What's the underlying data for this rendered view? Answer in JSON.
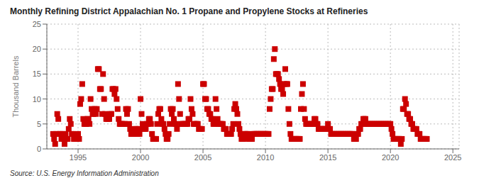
{
  "chart_data": {
    "type": "scatter",
    "title": "Monthly Refining District Appalachian No. 1 Propane and Propylene Stocks at Refineries",
    "ylabel": "Thousand Barrels",
    "annotations": [
      "Source: U.S. Energy Information Administration"
    ],
    "color": "#cc0000",
    "marker": "square",
    "grid": true,
    "xlim": [
      1992.5,
      2025.5
    ],
    "ylim": [
      0,
      25
    ],
    "xticks": [
      1995,
      2000,
      2005,
      2010,
      2015,
      2020,
      2025
    ],
    "yticks": [
      0,
      5,
      10,
      15,
      20,
      25
    ],
    "x": [
      1993.0,
      1993.083,
      1993.167,
      1993.25,
      1993.333,
      1993.417,
      1993.5,
      1993.583,
      1993.667,
      1993.75,
      1993.833,
      1993.917,
      1994.0,
      1994.083,
      1994.167,
      1994.25,
      1994.333,
      1994.417,
      1994.5,
      1994.583,
      1994.667,
      1994.75,
      1994.833,
      1994.917,
      1995.0,
      1995.083,
      1995.167,
      1995.25,
      1995.333,
      1995.417,
      1995.5,
      1995.583,
      1995.667,
      1995.75,
      1995.833,
      1995.917,
      1996.0,
      1996.083,
      1996.167,
      1996.25,
      1996.333,
      1996.417,
      1996.5,
      1996.583,
      1996.667,
      1996.75,
      1996.833,
      1996.917,
      1997.0,
      1997.083,
      1997.167,
      1997.25,
      1997.333,
      1997.417,
      1997.5,
      1997.583,
      1997.667,
      1997.75,
      1997.833,
      1997.917,
      1998.0,
      1998.083,
      1998.167,
      1998.25,
      1998.333,
      1998.417,
      1998.5,
      1998.583,
      1998.667,
      1998.75,
      1998.833,
      1998.917,
      1999.0,
      1999.083,
      1999.167,
      1999.25,
      1999.333,
      1999.417,
      1999.5,
      1999.583,
      1999.667,
      1999.75,
      1999.833,
      1999.917,
      2000.0,
      2000.083,
      2000.167,
      2000.25,
      2000.333,
      2000.417,
      2000.5,
      2000.583,
      2000.667,
      2000.75,
      2000.833,
      2000.917,
      2001.0,
      2001.083,
      2001.167,
      2001.25,
      2001.333,
      2001.417,
      2001.5,
      2001.583,
      2001.667,
      2001.75,
      2001.833,
      2001.917,
      2002.0,
      2002.083,
      2002.167,
      2002.25,
      2002.333,
      2002.417,
      2002.5,
      2002.583,
      2002.667,
      2002.75,
      2002.833,
      2002.917,
      2003.0,
      2003.083,
      2003.167,
      2003.25,
      2003.333,
      2003.417,
      2003.5,
      2003.583,
      2003.667,
      2003.75,
      2003.833,
      2003.917,
      2004.0,
      2004.083,
      2004.167,
      2004.25,
      2004.333,
      2004.417,
      2004.5,
      2004.583,
      2004.667,
      2004.75,
      2004.833,
      2004.917,
      2005.0,
      2005.083,
      2005.167,
      2005.25,
      2005.333,
      2005.417,
      2005.5,
      2005.583,
      2005.667,
      2005.75,
      2005.833,
      2005.917,
      2006.0,
      2006.083,
      2006.167,
      2006.25,
      2006.333,
      2006.417,
      2006.5,
      2006.583,
      2006.667,
      2006.75,
      2006.833,
      2006.917,
      2007.0,
      2007.083,
      2007.167,
      2007.25,
      2007.333,
      2007.417,
      2007.5,
      2007.583,
      2007.667,
      2007.75,
      2007.833,
      2007.917,
      2008.0,
      2008.083,
      2008.167,
      2008.25,
      2008.333,
      2008.417,
      2008.5,
      2008.583,
      2008.667,
      2008.75,
      2008.833,
      2008.917,
      2009.0,
      2009.083,
      2009.167,
      2009.25,
      2009.333,
      2009.417,
      2009.5,
      2009.583,
      2009.667,
      2009.75,
      2009.833,
      2009.917,
      2010.0,
      2010.083,
      2010.167,
      2010.25,
      2010.333,
      2010.417,
      2010.5,
      2010.583,
      2010.667,
      2010.75,
      2010.833,
      2010.917,
      2011.0,
      2011.083,
      2011.167,
      2011.25,
      2011.333,
      2011.417,
      2011.5,
      2011.583,
      2011.667,
      2011.75,
      2011.833,
      2011.917,
      2012.0,
      2012.083,
      2012.167,
      2012.25,
      2012.333,
      2012.417,
      2012.5,
      2012.583,
      2012.667,
      2012.75,
      2012.833,
      2012.917,
      2013.0,
      2013.083,
      2013.167,
      2013.25,
      2013.333,
      2013.417,
      2013.5,
      2013.583,
      2013.667,
      2013.75,
      2013.833,
      2013.917,
      2014.0,
      2014.083,
      2014.167,
      2014.25,
      2014.333,
      2014.417,
      2014.5,
      2014.583,
      2014.667,
      2014.75,
      2014.833,
      2014.917,
      2015.0,
      2015.083,
      2015.167,
      2015.25,
      2015.333,
      2015.417,
      2015.5,
      2015.583,
      2015.667,
      2015.75,
      2015.833,
      2015.917,
      2016.0,
      2016.083,
      2016.167,
      2016.25,
      2016.333,
      2016.417,
      2016.5,
      2016.583,
      2016.667,
      2016.75,
      2016.833,
      2016.917,
      2017.0,
      2017.083,
      2017.167,
      2017.25,
      2017.333,
      2017.417,
      2017.5,
      2017.583,
      2017.667,
      2017.75,
      2017.833,
      2017.917,
      2018.0,
      2018.083,
      2018.167,
      2018.25,
      2018.333,
      2018.417,
      2018.5,
      2018.583,
      2018.667,
      2018.75,
      2018.833,
      2018.917,
      2019.0,
      2019.083,
      2019.167,
      2019.25,
      2019.333,
      2019.417,
      2019.5,
      2019.583,
      2019.667,
      2019.75,
      2019.833,
      2019.917,
      2020.0,
      2020.083,
      2020.167,
      2020.25,
      2020.333,
      2020.417,
      2020.5,
      2020.583,
      2020.667,
      2020.75,
      2020.833,
      2020.917,
      2021.0,
      2021.083,
      2021.167,
      2021.25,
      2021.333,
      2021.417,
      2021.5,
      2021.583,
      2021.667,
      2021.75,
      2021.833,
      2021.917,
      2022.0,
      2022.083,
      2022.167,
      2022.25,
      2022.333,
      2022.417,
      2022.5,
      2022.583,
      2022.667,
      2022.75,
      2022.833,
      2022.917
    ],
    "values": [
      3,
      2,
      1,
      3,
      7,
      6,
      3,
      3,
      2,
      3,
      2,
      1,
      3,
      2,
      2,
      4,
      6,
      5,
      3,
      3,
      2,
      2,
      2,
      2,
      3,
      2,
      9,
      10,
      13,
      6,
      5,
      5,
      5,
      6,
      6,
      5,
      10,
      8,
      7,
      7,
      8,
      7,
      8,
      16,
      16,
      12,
      12,
      7,
      15,
      10,
      7,
      6,
      6,
      6,
      6,
      7,
      7,
      12,
      12,
      11,
      12,
      10,
      8,
      6,
      5,
      5,
      5,
      5,
      5,
      5,
      8,
      7,
      8,
      5,
      4,
      3,
      3,
      3,
      3,
      4,
      4,
      3,
      4,
      3,
      10,
      7,
      5,
      4,
      4,
      4,
      5,
      5,
      6,
      6,
      5,
      3,
      2,
      2,
      2,
      2,
      5,
      7,
      8,
      8,
      6,
      5,
      5,
      4,
      3,
      2,
      2,
      3,
      5,
      8,
      7,
      8,
      6,
      5,
      5,
      4,
      13,
      10,
      7,
      5,
      5,
      5,
      5,
      5,
      5,
      5,
      6,
      6,
      10,
      8,
      7,
      5,
      5,
      5,
      5,
      5,
      4,
      4,
      4,
      4,
      13,
      13,
      10,
      10,
      8,
      8,
      7,
      7,
      6,
      6,
      5,
      5,
      10,
      8,
      6,
      5,
      5,
      5,
      5,
      5,
      4,
      4,
      4,
      3,
      3,
      3,
      3,
      3,
      4,
      5,
      8,
      9,
      8,
      7,
      5,
      4,
      3,
      2,
      2,
      2,
      3,
      3,
      3,
      3,
      2,
      2,
      2,
      2,
      3,
      3,
      3,
      3,
      3,
      3,
      3,
      3,
      3,
      3,
      3,
      3,
      3,
      3,
      3,
      3,
      8,
      10,
      12,
      12,
      18,
      20,
      15,
      15,
      15,
      14,
      13,
      12,
      12,
      11,
      13,
      16,
      13,
      13,
      8,
      5,
      3,
      2,
      2,
      2,
      2,
      2,
      2,
      2,
      2,
      2,
      8,
      11,
      13,
      8,
      6,
      5,
      5,
      5,
      5,
      5,
      5,
      5,
      5,
      6,
      6,
      5,
      5,
      4,
      4,
      4,
      4,
      4,
      4,
      4,
      4,
      4,
      5,
      4,
      4,
      3,
      3,
      3,
      3,
      3,
      3,
      3,
      3,
      3,
      3,
      3,
      3,
      3,
      3,
      3,
      3,
      3,
      3,
      3,
      3,
      3,
      3,
      2,
      2,
      2,
      3,
      3,
      4,
      4,
      5,
      5,
      6,
      6,
      6,
      5,
      5,
      5,
      5,
      5,
      5,
      5,
      5,
      5,
      5,
      5,
      5,
      5,
      5,
      5,
      5,
      5,
      5,
      5,
      5,
      5,
      5,
      5,
      5,
      4,
      3,
      2,
      2,
      2,
      2,
      2,
      2,
      2,
      1,
      2,
      8,
      8,
      10,
      9,
      7,
      7,
      6,
      6,
      5,
      5,
      4,
      4,
      4,
      4,
      3,
      3,
      3,
      2,
      2,
      2,
      2,
      2,
      2,
      2
    ]
  }
}
